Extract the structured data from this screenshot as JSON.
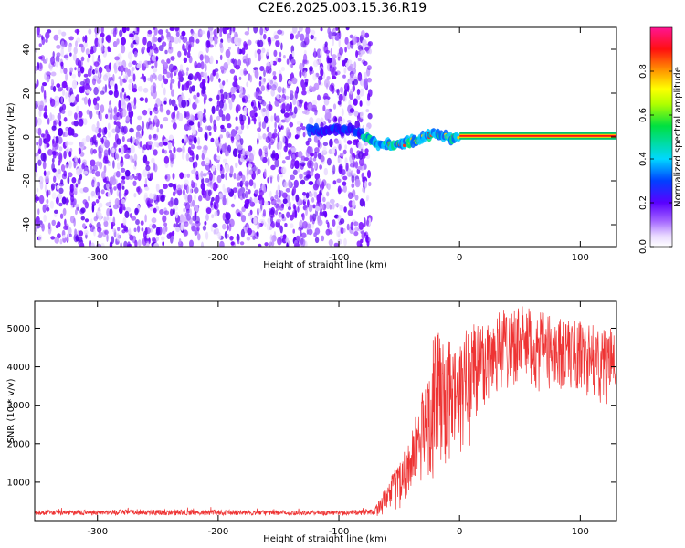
{
  "title": "C2E6.2025.003.15.36.R19",
  "chart_data": [
    {
      "type": "heatmap",
      "xlabel": "Height of straight line (km)",
      "ylabel": "Frequency (Hz)",
      "xlim": [
        -352,
        130
      ],
      "ylim": [
        -50,
        50
      ],
      "xticks": [
        -300,
        -200,
        -100,
        0,
        100
      ],
      "yticks": [
        -40,
        -20,
        0,
        20,
        40
      ],
      "colorbar": {
        "label": "Normalized spectral amplitude",
        "range": [
          0,
          1
        ],
        "ticks": [
          0.0,
          0.2,
          0.4,
          0.6,
          0.8
        ]
      },
      "noise_region_x": [
        -352,
        -80
      ],
      "signal_track": [
        {
          "x": -125,
          "y": 3.5
        },
        {
          "x": -110,
          "y": 3.0
        },
        {
          "x": -100,
          "y": 3.5
        },
        {
          "x": -90,
          "y": 3.0
        },
        {
          "x": -82,
          "y": 2.0
        },
        {
          "x": -75,
          "y": -1.0
        },
        {
          "x": -68,
          "y": -2.5
        },
        {
          "x": -60,
          "y": -3.5
        },
        {
          "x": -52,
          "y": -4.0
        },
        {
          "x": -45,
          "y": -2.5
        },
        {
          "x": -38,
          "y": -2.0
        },
        {
          "x": -30,
          "y": 0.0
        },
        {
          "x": -22,
          "y": 1.5
        },
        {
          "x": -15,
          "y": 0.5
        },
        {
          "x": -8,
          "y": -0.5
        },
        {
          "x": 0,
          "y": 0.0
        },
        {
          "x": 20,
          "y": 0.5
        },
        {
          "x": 60,
          "y": 0.5
        },
        {
          "x": 100,
          "y": 0.5
        },
        {
          "x": 130,
          "y": 0.5
        }
      ]
    },
    {
      "type": "line",
      "xlabel": "Height of straight line (km)",
      "ylabel": "SNR (10 * v/v)",
      "xlim": [
        -352,
        130
      ],
      "ylim": [
        0,
        5700
      ],
      "xticks": [
        -300,
        -200,
        -100,
        0,
        100
      ],
      "yticks": [
        1000,
        2000,
        3000,
        4000,
        5000
      ],
      "color": "#ee3333",
      "envelope": [
        {
          "x": -352,
          "min": 100,
          "max": 320
        },
        {
          "x": -260,
          "min": 100,
          "max": 360
        },
        {
          "x": -150,
          "min": 100,
          "max": 320
        },
        {
          "x": -90,
          "min": 100,
          "max": 330
        },
        {
          "x": -70,
          "min": 100,
          "max": 400
        },
        {
          "x": -60,
          "min": 200,
          "max": 900
        },
        {
          "x": -50,
          "min": 300,
          "max": 1600
        },
        {
          "x": -40,
          "min": 600,
          "max": 2300
        },
        {
          "x": -30,
          "min": 900,
          "max": 3500
        },
        {
          "x": -20,
          "min": 1100,
          "max": 5000
        },
        {
          "x": -10,
          "min": 1300,
          "max": 4700
        },
        {
          "x": 0,
          "min": 1500,
          "max": 4500
        },
        {
          "x": 10,
          "min": 2000,
          "max": 5500
        },
        {
          "x": 20,
          "min": 2700,
          "max": 5200
        },
        {
          "x": 30,
          "min": 3200,
          "max": 5500
        },
        {
          "x": 40,
          "min": 3400,
          "max": 5600
        },
        {
          "x": 50,
          "min": 3600,
          "max": 5600
        },
        {
          "x": 60,
          "min": 3200,
          "max": 5500
        },
        {
          "x": 80,
          "min": 3400,
          "max": 5300
        },
        {
          "x": 100,
          "min": 3300,
          "max": 5200
        },
        {
          "x": 120,
          "min": 3000,
          "max": 5000
        },
        {
          "x": 130,
          "min": 3100,
          "max": 5000
        }
      ]
    }
  ]
}
